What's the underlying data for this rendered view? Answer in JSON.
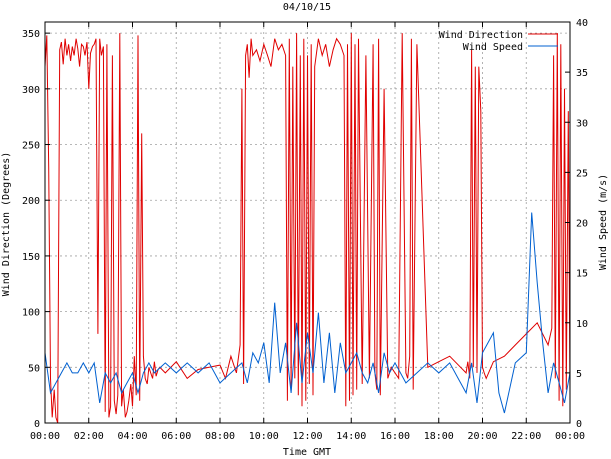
{
  "chart_data": {
    "type": "line",
    "title": "04/10/15",
    "xlabel": "Time GMT",
    "ylabel_left": "Wind Direction (Degrees)",
    "ylabel_right": "Wind Speed (m/s)",
    "x_ticks": [
      "00:00",
      "02:00",
      "04:00",
      "06:00",
      "08:00",
      "10:00",
      "12:00",
      "14:00",
      "16:00",
      "18:00",
      "20:00",
      "22:00",
      "00:00"
    ],
    "x_range_hours": [
      0,
      24
    ],
    "y_left_range": [
      0,
      360
    ],
    "y_left_ticks": [
      0,
      50,
      100,
      150,
      200,
      250,
      300,
      350
    ],
    "y_right_range": [
      0,
      40
    ],
    "y_right_ticks": [
      0,
      5,
      10,
      15,
      20,
      25,
      30,
      35,
      40
    ],
    "grid": true,
    "legend_position": "top-right",
    "series": [
      {
        "name": "Wind Direction",
        "axis": "left",
        "color": "#e00000",
        "x_hours": [
          0.0,
          0.08,
          0.17,
          0.25,
          0.33,
          0.42,
          0.5,
          0.58,
          0.67,
          0.75,
          0.83,
          0.92,
          1.0,
          1.08,
          1.17,
          1.25,
          1.33,
          1.42,
          1.5,
          1.58,
          1.67,
          1.75,
          1.83,
          1.92,
          2.0,
          2.08,
          2.17,
          2.25,
          2.33,
          2.42,
          2.5,
          2.58,
          2.67,
          2.75,
          2.83,
          2.92,
          3.0,
          3.08,
          3.17,
          3.25,
          3.33,
          3.42,
          3.5,
          3.58,
          3.67,
          3.75,
          3.83,
          3.92,
          4.0,
          4.08,
          4.17,
          4.25,
          4.33,
          4.42,
          4.5,
          4.58,
          4.67,
          4.75,
          4.83,
          4.92,
          5.0,
          5.08,
          5.17,
          5.25,
          5.5,
          6.0,
          6.5,
          7.0,
          7.5,
          8.0,
          8.25,
          8.5,
          8.75,
          8.92,
          9.0,
          9.08,
          9.17,
          9.25,
          9.33,
          9.42,
          9.5,
          9.67,
          9.83,
          10.0,
          10.17,
          10.33,
          10.5,
          10.67,
          10.83,
          11.0,
          11.08,
          11.17,
          11.25,
          11.33,
          11.42,
          11.5,
          11.58,
          11.67,
          11.75,
          11.83,
          11.92,
          12.0,
          12.08,
          12.17,
          12.25,
          12.33,
          12.5,
          12.67,
          12.83,
          13.0,
          13.17,
          13.33,
          13.5,
          13.67,
          13.75,
          13.83,
          13.92,
          14.0,
          14.08,
          14.17,
          14.25,
          14.33,
          14.5,
          14.67,
          14.83,
          15.0,
          15.08,
          15.17,
          15.25,
          15.33,
          15.5,
          15.67,
          15.83,
          16.0,
          16.17,
          16.33,
          16.5,
          16.58,
          16.67,
          16.75,
          16.83,
          17.0,
          17.5,
          18.0,
          18.5,
          19.0,
          19.25,
          19.33,
          19.42,
          19.5,
          19.58,
          19.67,
          19.75,
          19.83,
          19.92,
          20.0,
          20.08,
          20.17,
          20.5,
          21.0,
          21.5,
          22.0,
          22.5,
          23.0,
          23.17,
          23.25,
          23.33,
          23.42,
          23.5,
          23.58,
          23.67,
          23.75,
          23.83,
          23.92,
          24.0
        ],
        "values": [
          320,
          348,
          230,
          40,
          5,
          30,
          5,
          0,
          335,
          342,
          322,
          345,
          330,
          340,
          325,
          338,
          330,
          345,
          336,
          320,
          340,
          338,
          330,
          342,
          300,
          332,
          338,
          340,
          345,
          80,
          345,
          330,
          338,
          10,
          340,
          5,
          15,
          330,
          20,
          8,
          25,
          350,
          15,
          30,
          5,
          10,
          20,
          35,
          15,
          60,
          25,
          348,
          20,
          260,
          60,
          40,
          35,
          50,
          45,
          40,
          55,
          42,
          48,
          50,
          45,
          55,
          40,
          48,
          50,
          52,
          40,
          60,
          45,
          70,
          300,
          35,
          330,
          340,
          310,
          345,
          330,
          335,
          325,
          340,
          330,
          320,
          345,
          335,
          340,
          330,
          20,
          345,
          30,
          320,
          40,
          350,
          25,
          330,
          15,
          345,
          20,
          330,
          35,
          340,
          25,
          320,
          345,
          330,
          340,
          320,
          335,
          345,
          340,
          330,
          15,
          340,
          20,
          350,
          25,
          340,
          30,
          345,
          35,
          330,
          40,
          340,
          45,
          30,
          345,
          25,
          300,
          40,
          50,
          45,
          40,
          350,
          45,
          40,
          60,
          345,
          30,
          340,
          50,
          55,
          60,
          50,
          45,
          55,
          40,
          335,
          50,
          320,
          45,
          320,
          280,
          50,
          45,
          40,
          55,
          60,
          70,
          80,
          90,
          70,
          85,
          330,
          40,
          350,
          20,
          340,
          15,
          300,
          30,
          280,
          25
        ]
      },
      {
        "name": "Wind Speed",
        "axis": "right",
        "color": "#0060d0",
        "x_hours": [
          0.0,
          0.25,
          0.5,
          0.75,
          1.0,
          1.25,
          1.5,
          1.75,
          2.0,
          2.25,
          2.5,
          2.75,
          3.0,
          3.25,
          3.5,
          3.75,
          4.0,
          4.25,
          4.5,
          4.75,
          5.0,
          5.5,
          6.0,
          6.5,
          7.0,
          7.5,
          8.0,
          8.5,
          9.0,
          9.25,
          9.5,
          9.75,
          10.0,
          10.25,
          10.5,
          10.75,
          11.0,
          11.25,
          11.5,
          11.75,
          12.0,
          12.25,
          12.5,
          12.75,
          13.0,
          13.25,
          13.5,
          13.75,
          14.0,
          14.25,
          14.5,
          14.75,
          15.0,
          15.25,
          15.5,
          15.75,
          16.0,
          16.5,
          17.0,
          17.5,
          18.0,
          18.5,
          19.0,
          19.25,
          19.5,
          19.75,
          20.0,
          20.25,
          20.5,
          20.75,
          21.0,
          21.5,
          22.0,
          22.25,
          22.5,
          22.75,
          23.0,
          23.25,
          23.5,
          23.75,
          24.0
        ],
        "values": [
          7,
          3,
          4,
          5,
          6,
          5,
          5,
          6,
          5,
          6,
          2,
          5,
          4,
          5,
          3,
          4,
          5,
          3,
          5,
          6,
          5,
          6,
          5,
          6,
          5,
          6,
          4,
          5,
          6,
          4,
          7,
          6,
          8,
          4,
          12,
          5,
          8,
          3,
          10,
          4,
          9,
          5,
          11,
          4,
          9,
          3,
          8,
          5,
          6,
          7,
          5,
          4,
          6,
          3,
          7,
          5,
          6,
          4,
          5,
          6,
          5,
          6,
          4,
          3,
          6,
          2,
          7,
          8,
          9,
          3,
          1,
          6,
          7,
          21,
          14,
          8,
          3,
          6,
          4,
          2,
          5
        ]
      }
    ]
  }
}
